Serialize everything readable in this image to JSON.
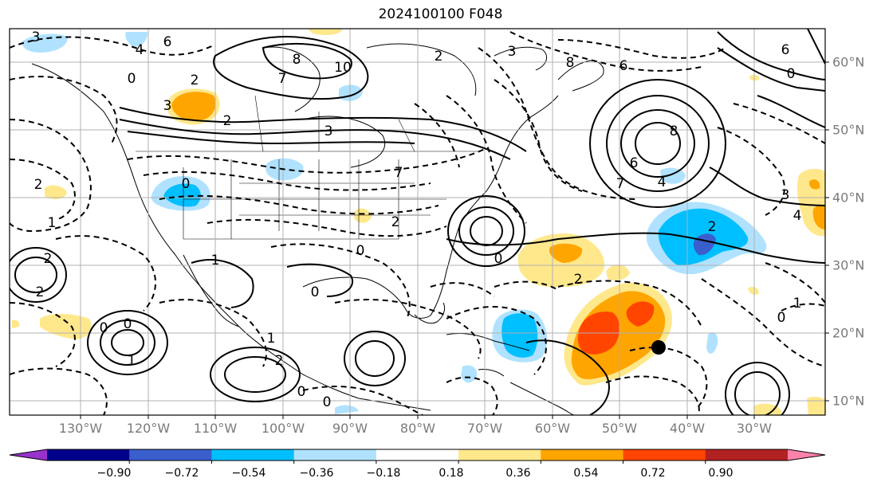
{
  "title": "2024100100 F048",
  "lon_labels": [
    "130°W",
    "120°W",
    "110°W",
    "100°W",
    "90°W",
    "80°W",
    "70°W",
    "60°W",
    "50°W",
    "40°W",
    "30°W"
  ],
  "lat_labels": [
    "60°N",
    "50°N",
    "40°N",
    "30°N",
    "20°N",
    "10°N"
  ],
  "colorbar": {
    "colors": [
      "#9932cc",
      "#00008b",
      "#3a5fcd",
      "#00bfff",
      "#b0e2ff",
      "#ffffff",
      "#ffe88c",
      "#ffa500",
      "#ff4500",
      "#b22222",
      "#ff82ab"
    ],
    "ticks": [
      "−0.90",
      "−0.72",
      "−0.54",
      "−0.36",
      "−0.18",
      "0.18",
      "0.36",
      "0.54",
      "0.72",
      "0.90"
    ]
  },
  "contour_labels": [
    "3",
    "6",
    "4",
    "0",
    "2",
    "3",
    "8",
    "10",
    "7",
    "3",
    "2",
    "0",
    "1",
    "2",
    "2",
    "0",
    "0",
    "1",
    "0",
    "2",
    "2",
    "1",
    "0",
    "2",
    "7",
    "3",
    "2",
    "0",
    "0",
    "1",
    "0",
    "8",
    "6",
    "7",
    "8",
    "6",
    "4",
    "3",
    "4",
    "2",
    "1",
    "0",
    "2",
    "6",
    "0"
  ],
  "colors": {
    "frame": "#000000",
    "grid": "#b0b0b0",
    "marker": "#000000",
    "tick_text": "#7a7a7a"
  }
}
